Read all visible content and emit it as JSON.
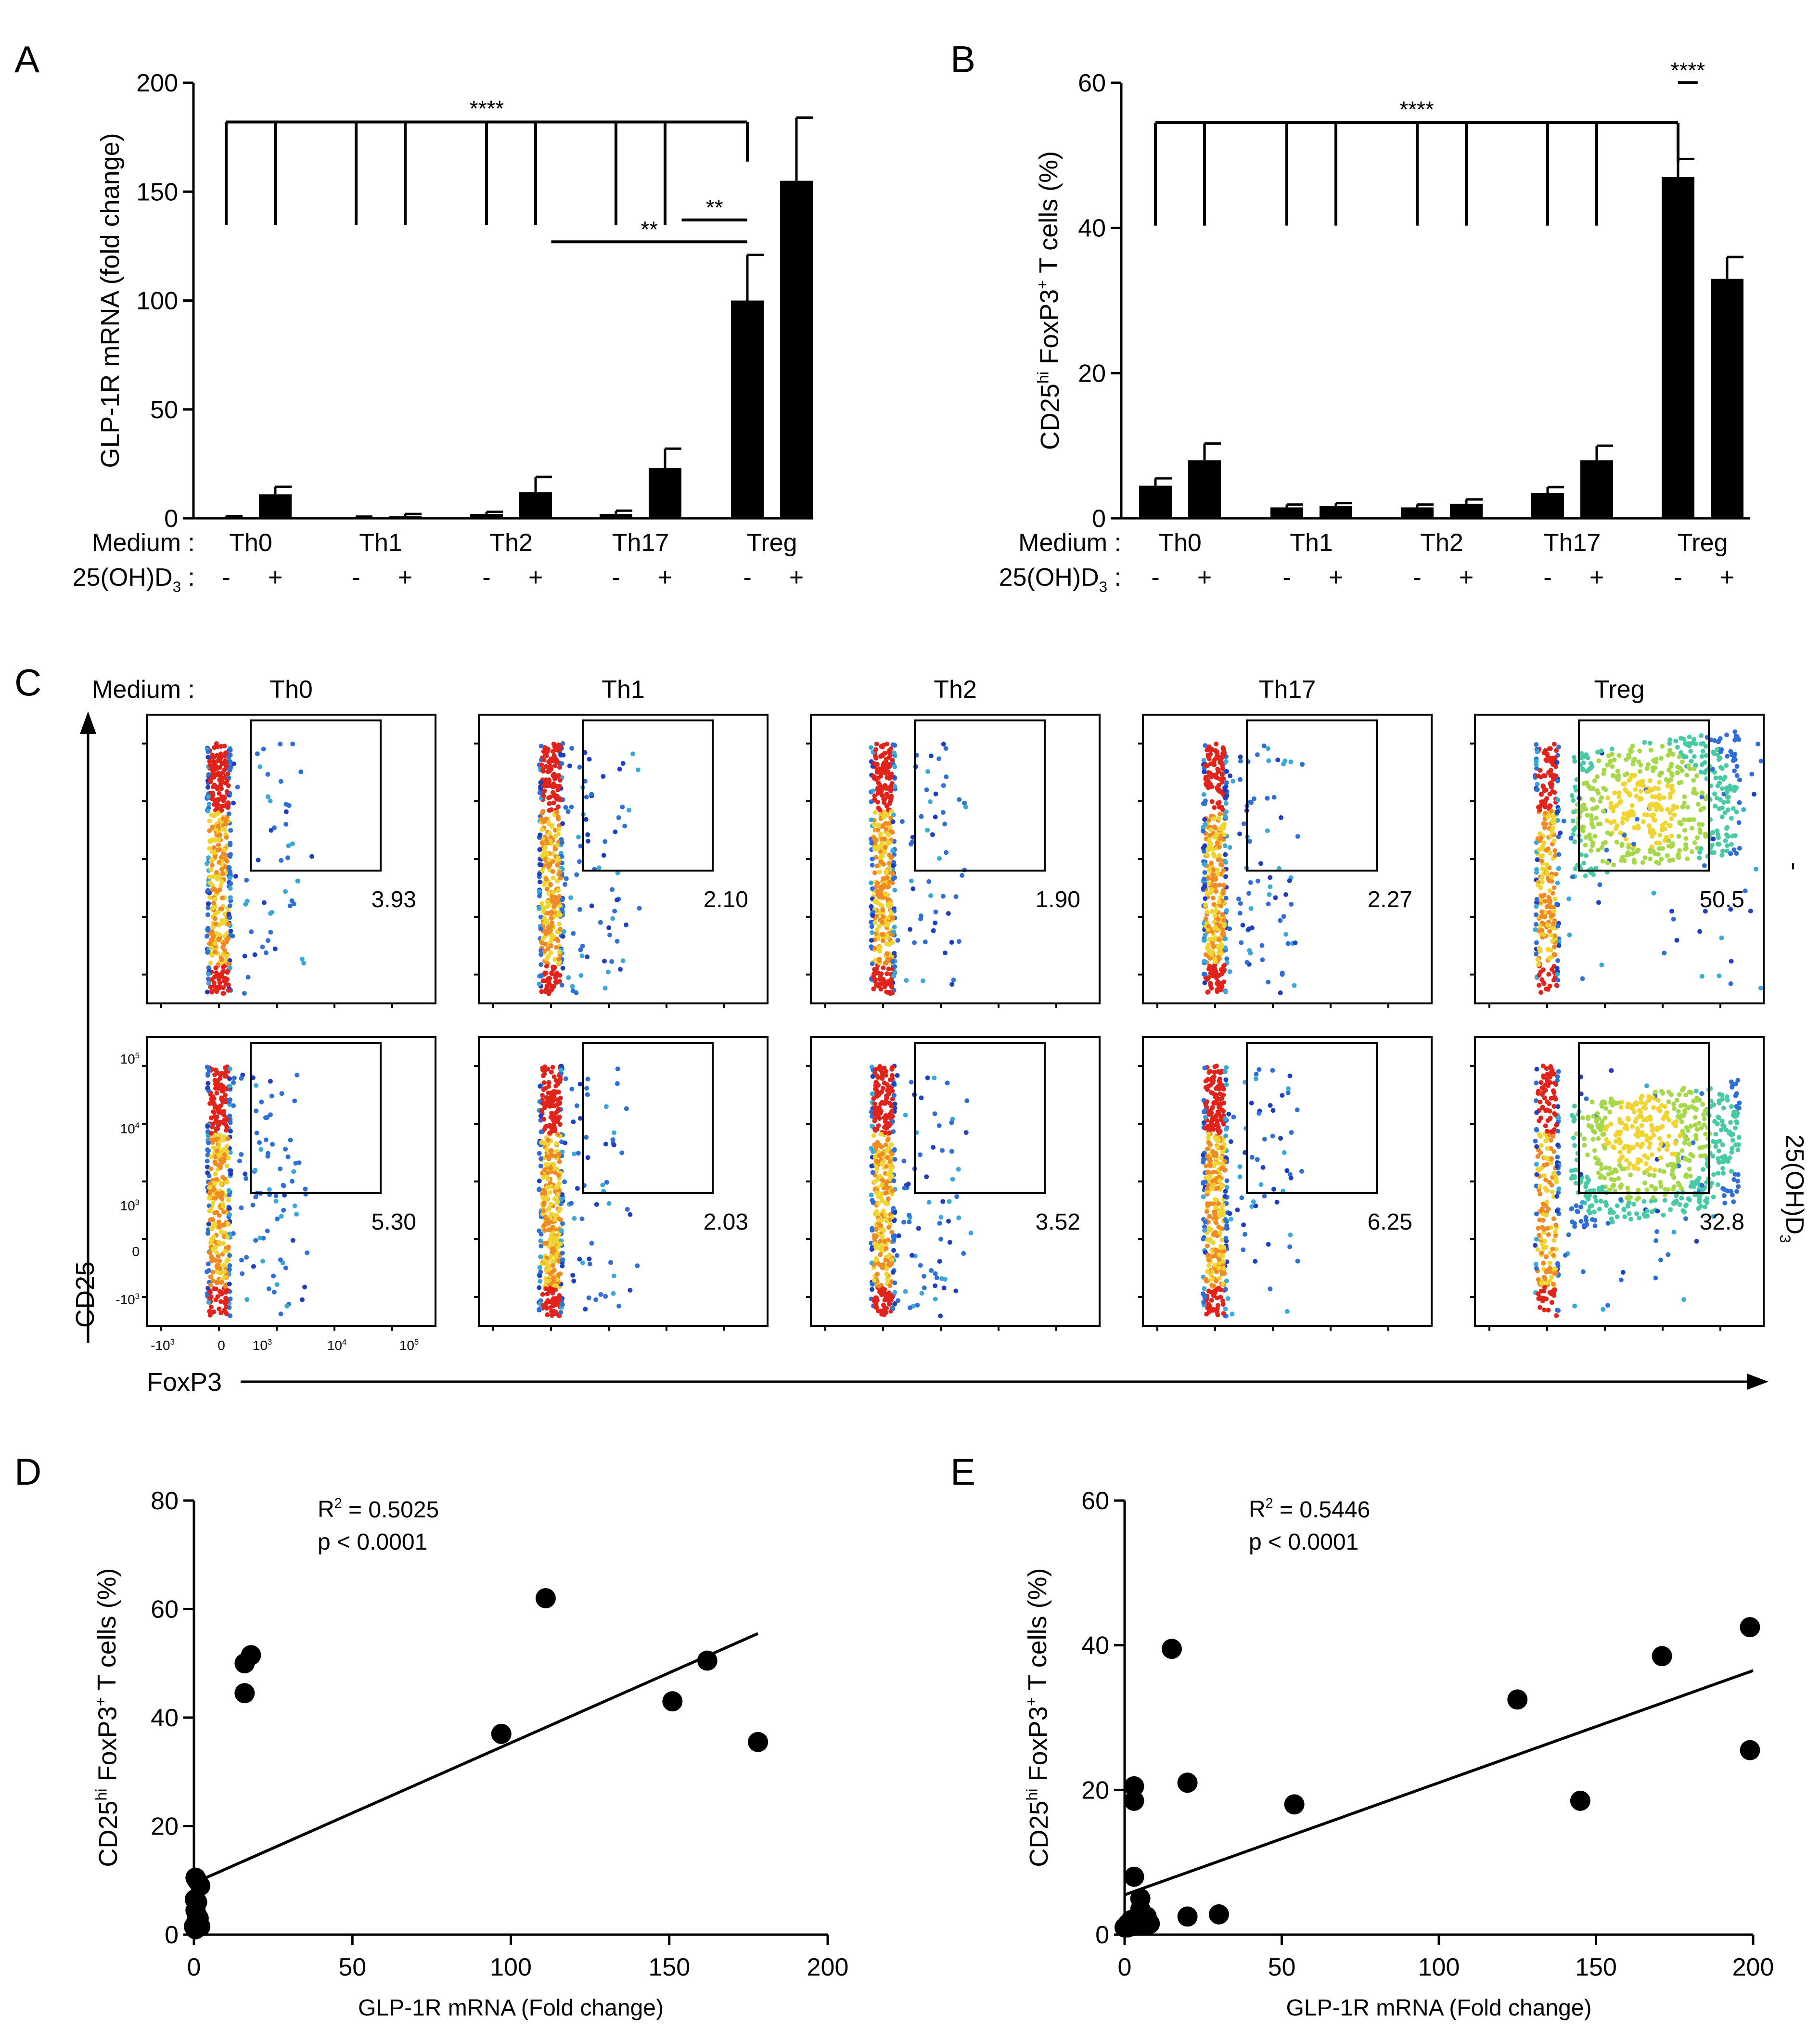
{
  "chart_data": [
    {
      "panel": "A",
      "type": "bar",
      "ylabel": "GLP-1R mRNA (fold change)",
      "ylim": [
        0,
        200
      ],
      "yticks": [
        "0",
        "50",
        "100",
        "150",
        "200"
      ],
      "yticks_values": [
        0,
        50,
        100,
        150,
        200
      ],
      "row1_label": "Medium :",
      "row2_label": "25(OH)D",
      "row2_sub": "3",
      "row2_suffix": " :",
      "groups": [
        "Th0",
        "Th1",
        "Th2",
        "Th17",
        "Treg"
      ],
      "treatment_labels": [
        "-",
        "+"
      ],
      "series": [
        {
          "name": "-",
          "values": [
            0.5,
            0.5,
            2,
            2,
            100
          ],
          "errors": [
            0.5,
            0.3,
            1,
            1.5,
            21
          ]
        },
        {
          "name": "+",
          "values": [
            11,
            1,
            12,
            23,
            155
          ],
          "errors": [
            3.5,
            1,
            7,
            9,
            29
          ]
        }
      ],
      "significance": [
        {
          "label": "****",
          "from_group": 0,
          "to_group": 4,
          "level": 182,
          "kind": "bracket"
        },
        {
          "label": "**",
          "from_group": 2.5,
          "to_group": 4,
          "level": 127,
          "kind": "line"
        },
        {
          "label": "**",
          "from_group": 3.5,
          "to_group": 4,
          "level": 137,
          "kind": "line"
        }
      ]
    },
    {
      "panel": "B",
      "type": "bar",
      "ylabel_main": "CD25",
      "ylabel_sup": "hi",
      "ylabel_mid": " FoxP3",
      "ylabel_sup2": "+",
      "ylabel_end": " T cells (%)",
      "ylim": [
        0,
        60
      ],
      "yticks": [
        "0",
        "20",
        "40",
        "60"
      ],
      "yticks_values": [
        0,
        20,
        40,
        60
      ],
      "row1_label": "Medium :",
      "row2_label": "25(OH)D",
      "row2_sub": "3",
      "row2_suffix": " :",
      "groups": [
        "Th0",
        "Th1",
        "Th2",
        "Th17",
        "Treg"
      ],
      "treatment_labels": [
        "-",
        "+"
      ],
      "series": [
        {
          "name": "-",
          "values": [
            4.5,
            1.5,
            1.5,
            3.5,
            47
          ],
          "errors": [
            1,
            0.4,
            0.4,
            0.8,
            2.5
          ]
        },
        {
          "name": "+",
          "values": [
            8,
            1.7,
            2,
            8,
            33
          ],
          "errors": [
            2.3,
            0.4,
            0.6,
            2,
            3
          ]
        }
      ],
      "significance": [
        {
          "label": "****",
          "from_group": 0,
          "to_group": 4,
          "level": 54.5,
          "kind": "bracket"
        },
        {
          "label": "****",
          "from_group": 4,
          "to_group": 4.4,
          "level": 60,
          "kind": "line"
        }
      ]
    }
  ],
  "panel_labels": {
    "a": "A",
    "b": "B",
    "c": "C",
    "d": "D",
    "e": "E"
  },
  "flow": {
    "medium_label": "Medium :",
    "columns": [
      "Th0",
      "Th1",
      "Th2",
      "Th17",
      "Treg"
    ],
    "row_labels": [
      "-",
      "25(OH)D"
    ],
    "row_label_sub": "3",
    "values_row1": [
      "3.93",
      "2.10",
      "1.90",
      "2.27",
      "50.5"
    ],
    "values_row2": [
      "5.30",
      "2.03",
      "3.52",
      "6.25",
      "32.8"
    ],
    "y_axis_label": "CD25",
    "x_axis_label": "FoxP3",
    "y_ticks": [
      {
        "base": "10",
        "exp": "5"
      },
      {
        "base": "10",
        "exp": "4"
      },
      {
        "base": "10",
        "exp": "3"
      },
      {
        "base": "0",
        "exp": ""
      },
      {
        "base": "-10",
        "exp": "3"
      }
    ],
    "x_ticks": [
      {
        "base": "-10",
        "exp": "3"
      },
      {
        "base": "0",
        "exp": ""
      },
      {
        "base": "10",
        "exp": "3"
      },
      {
        "base": "10",
        "exp": "4"
      },
      {
        "base": "10",
        "exp": "5"
      }
    ]
  },
  "scatter_d": {
    "type": "scatter",
    "xlabel": "GLP-1R mRNA (Fold change)",
    "ylabel_main": "CD25",
    "ylabel_sup": "hi",
    "ylabel_mid": " FoxP3",
    "ylabel_sup2": "+",
    "ylabel_end": " T cells (%)",
    "xlim": [
      0,
      200
    ],
    "ylim": [
      0,
      80
    ],
    "xticks": [
      "0",
      "50",
      "100",
      "150",
      "200"
    ],
    "xticks_values": [
      0,
      50,
      100,
      150,
      200
    ],
    "yticks": [
      "0",
      "20",
      "40",
      "60",
      "80"
    ],
    "yticks_values": [
      0,
      20,
      40,
      60,
      80
    ],
    "r2_prefix": "R",
    "r2_sup": "2",
    "r2_value": " = 0.5025",
    "p_text": "p < 0.0001",
    "fit": {
      "x0": 0,
      "y0": 9.5,
      "x1": 178,
      "y1": 55.5
    },
    "points": [
      [
        16,
        50
      ],
      [
        18,
        51.5
      ],
      [
        16,
        44.5
      ],
      [
        111,
        62
      ],
      [
        97,
        37
      ],
      [
        151,
        43
      ],
      [
        162,
        50.5
      ],
      [
        178,
        35.5
      ],
      [
        0.5,
        10.5
      ],
      [
        1,
        10
      ],
      [
        2,
        9
      ],
      [
        0.3,
        6.5
      ],
      [
        1,
        6
      ],
      [
        0.5,
        4.5
      ],
      [
        1,
        3.5
      ],
      [
        0.5,
        2
      ],
      [
        0,
        1.5
      ],
      [
        1.5,
        3
      ],
      [
        2,
        1.5
      ],
      [
        0.5,
        1
      ]
    ]
  },
  "scatter_e": {
    "type": "scatter",
    "xlabel": "GLP-1R mRNA (Fold change)",
    "ylabel_main": "CD25",
    "ylabel_sup": "hi",
    "ylabel_mid": " FoxP3",
    "ylabel_sup2": "+",
    "ylabel_end": " T cells (%)",
    "xlim": [
      0,
      200
    ],
    "ylim": [
      0,
      60
    ],
    "xticks": [
      "0",
      "50",
      "100",
      "150",
      "200"
    ],
    "xticks_values": [
      0,
      50,
      100,
      150,
      200
    ],
    "yticks": [
      "0",
      "20",
      "40",
      "60"
    ],
    "yticks_values": [
      0,
      20,
      40,
      60
    ],
    "r2_prefix": "R",
    "r2_sup": "2",
    "r2_value": " = 0.5446",
    "p_text": "p < 0.0001",
    "fit": {
      "x0": 0,
      "y0": 5.5,
      "x1": 200,
      "y1": 36.5
    },
    "points": [
      [
        15,
        39.5
      ],
      [
        3,
        20.5
      ],
      [
        3,
        18.5
      ],
      [
        20,
        21
      ],
      [
        54,
        18
      ],
      [
        125,
        32.5
      ],
      [
        145,
        18.5
      ],
      [
        171,
        38.5
      ],
      [
        199,
        42.5
      ],
      [
        199,
        25.5
      ],
      [
        20,
        2.5
      ],
      [
        30,
        2.8
      ],
      [
        3,
        8
      ],
      [
        5,
        5
      ],
      [
        5,
        3.5
      ],
      [
        4,
        2
      ],
      [
        6,
        1.5
      ],
      [
        8,
        1.5
      ],
      [
        2,
        2
      ],
      [
        1,
        1.5
      ],
      [
        0,
        1
      ],
      [
        3,
        1.2
      ],
      [
        7,
        2.5
      ],
      [
        1,
        1
      ]
    ]
  }
}
